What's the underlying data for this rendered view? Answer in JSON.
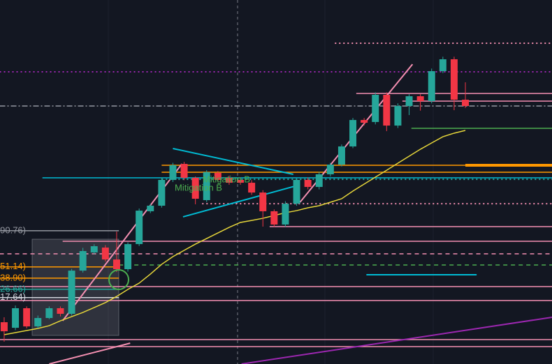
{
  "chart_data": {
    "type": "candlestick",
    "up_color": "#26a69a",
    "down_color": "#f23645",
    "xlim": [
      -0.37,
      48.7
    ],
    "ylim": [
      -55,
      343
    ],
    "open": [
      -9.3,
      -15.4,
      6.0,
      -13.9,
      -4.7,
      6.0,
      -0.1,
      47.1,
      67.0,
      72.3,
      59.3,
      48.7,
      76.1,
      112.0,
      118.1,
      146.3,
      163.8,
      148.6,
      124.2,
      153.9,
      148.6,
      146.3,
      143.2,
      132.5,
      112.0,
      97.5,
      120.3,
      146.3,
      138.6,
      152.4,
      163.0,
      182.9,
      211.8,
      209.6,
      239.3,
      205.7,
      227.1,
      237.8,
      232.4,
      265.2,
      278.2,
      234.0
    ],
    "high": [
      -3.9,
      9.0,
      8.0,
      -2.0,
      8.0,
      8.0,
      49.0,
      72.0,
      76.0,
      75.0,
      89.8,
      78.0,
      115.0,
      120.0,
      149.0,
      165.0,
      166.0,
      150.0,
      157.0,
      156.0,
      151.0,
      149.0,
      146.0,
      135.0,
      114.0,
      123.0,
      148.0,
      149.0,
      155.0,
      165.0,
      185.0,
      214.0,
      214.0,
      242.0,
      242.0,
      230.0,
      240.0,
      240.0,
      268.0,
      281.0,
      281.0,
      253.0
    ],
    "low": [
      -30.6,
      -18.0,
      -16.0,
      -16.0,
      -6.0,
      -3.0,
      -2.0,
      45.0,
      65.0,
      57.0,
      45.6,
      46.0,
      74.0,
      110.0,
      116.0,
      144.0,
      146.0,
      119.6,
      122.0,
      144.0,
      141.0,
      141.0,
      130.0,
      95.2,
      95.0,
      95.0,
      118.0,
      136.0,
      136.0,
      150.0,
      161.0,
      181.0,
      206.0,
      207.0,
      199.6,
      203.0,
      217.2,
      222.0,
      230.0,
      263.0,
      222.5,
      225.0
    ],
    "close": [
      -19.2,
      6.0,
      -13.9,
      -4.7,
      6.0,
      -0.1,
      47.1,
      68.5,
      73.8,
      59.3,
      48.7,
      76.1,
      112.7,
      118.1,
      146.3,
      162.3,
      148.6,
      125.7,
      154.7,
      146.3,
      143.2,
      143.2,
      132.5,
      112.0,
      97.5,
      120.3,
      146.3,
      138.6,
      152.4,
      163.0,
      182.9,
      211.8,
      208.8,
      239.3,
      205.7,
      227.1,
      237.8,
      232.4,
      265.2,
      278.2,
      234.0,
      227.1
    ],
    "ma": {
      "color": "#e6d63a",
      "values": [
        -23.0,
        -20.7,
        -18.4,
        -16.1,
        -13.1,
        -7.8,
        -3.2,
        1.4,
        6.7,
        12.1,
        18.9,
        26.6,
        33.4,
        43.3,
        54.0,
        62.4,
        69.3,
        76.1,
        82.2,
        88.3,
        94.4,
        99.8,
        102.0,
        104.3,
        107.4,
        110.4,
        112.7,
        115.8,
        118.1,
        121.9,
        125.7,
        134.1,
        141.7,
        149.3,
        156.9,
        164.6,
        172.2,
        179.8,
        186.7,
        193.5,
        197.4,
        200.4
      ]
    },
    "levels": [
      {
        "value": 264.5,
        "color": "#9c27b0",
        "style": "dotted",
        "start": -0.4
      },
      {
        "value": 295.7,
        "color": "#f48fb1",
        "style": "dotted",
        "start": 29.4
      },
      {
        "value": 240.8,
        "color": "#f48fb1",
        "style": "solid",
        "start": 31.3
      },
      {
        "value": 232.4,
        "color": "#f48fb1",
        "style": "solid",
        "start": 35.4
      },
      {
        "value": 227.1,
        "color": "#9598a1",
        "style": "dashdot",
        "start": -0.4
      },
      {
        "value": 202.7,
        "color": "#4caf50",
        "style": "solid",
        "start": 36.2
      },
      {
        "value": 162.3,
        "color": "#ff9800",
        "style": "thick",
        "start": 41.0
      },
      {
        "value": 162.3,
        "color": "#ff9800",
        "style": "solid",
        "start": 14.0
      },
      {
        "value": 154.7,
        "color": "#ff9800",
        "style": "solid",
        "start": 14.0
      },
      {
        "value": 148.6,
        "color": "#00bcd4",
        "style": "solid",
        "start": 3.4
      },
      {
        "value": 147.0,
        "color": "#26a69a",
        "style": "dotted",
        "start": 14.0
      },
      {
        "value": 120.3,
        "color": "#f48fb1",
        "style": "dotted",
        "start": 17.6
      },
      {
        "value": 95.2,
        "color": "#f48fb1",
        "style": "solid",
        "start": 23.6
      },
      {
        "value": 79.2,
        "color": "#f48fb1",
        "style": "solid",
        "start": 5.2
      },
      {
        "value": 65.5,
        "color": "#f48fb1",
        "style": "dashed",
        "start": -0.4
      },
      {
        "value": 53.3,
        "color": "#4caf50",
        "style": "dashed",
        "start": 10.2
      },
      {
        "value": 29.6,
        "color": "#f48fb1",
        "style": "solid",
        "start": -0.4
      },
      {
        "value": 14.4,
        "color": "#f48fb1",
        "style": "solid",
        "start": -0.4
      },
      {
        "value": -28.3,
        "color": "#f48fb1",
        "style": "solid",
        "start": -0.4
      },
      {
        "value": -36.0,
        "color": "#f48fb1",
        "style": "solid",
        "start": -0.4
      }
    ],
    "price_labels": [
      {
        "value": 90.76,
        "label": "90.76)",
        "color": "#9598a1",
        "end": 10.2
      },
      {
        "value": 51.14,
        "label": "51.14)",
        "color": "#ff9800",
        "end": 10.2
      },
      {
        "value": 38.9,
        "label": "38.90)",
        "color": "#ff9800",
        "end": 10.2
      },
      {
        "value": 26.66,
        "label": "26.66)",
        "color": "#26a69a",
        "end": 10.2
      },
      {
        "value": 17.64,
        "label": "17.64)",
        "color": "#d1d4dc",
        "end": 10.2
      }
    ],
    "trendlines": [
      {
        "color": "#00bcd4",
        "points": [
          [
            15.0,
            180.6
          ],
          [
            25.7,
            152.4
          ]
        ]
      },
      {
        "color": "#00bcd4",
        "points": [
          [
            15.9,
            105.9
          ],
          [
            26.3,
            141.0
          ]
        ]
      },
      {
        "color": "#00bcd4",
        "points": [
          [
            32.2,
            42.6
          ],
          [
            42.0,
            42.6
          ]
        ]
      },
      {
        "color": "#f48fb1",
        "points": [
          [
            5.2,
            -7.7
          ],
          [
            15.8,
            163.8
          ]
        ]
      },
      {
        "color": "#f48fb1",
        "points": [
          [
            26.3,
            121.9
          ],
          [
            36.3,
            272.8
          ]
        ]
      },
      {
        "color": "#9c27b0",
        "points": [
          [
            21.1,
            -55.0
          ],
          [
            48.7,
            -3.9
          ]
        ]
      },
      {
        "color": "#f48fb1",
        "points": [
          [
            4.0,
            -55.0
          ],
          [
            11.2,
            -32.2
          ]
        ]
      }
    ],
    "annotations": [
      "Mitigation B",
      "Mitigation B"
    ]
  }
}
